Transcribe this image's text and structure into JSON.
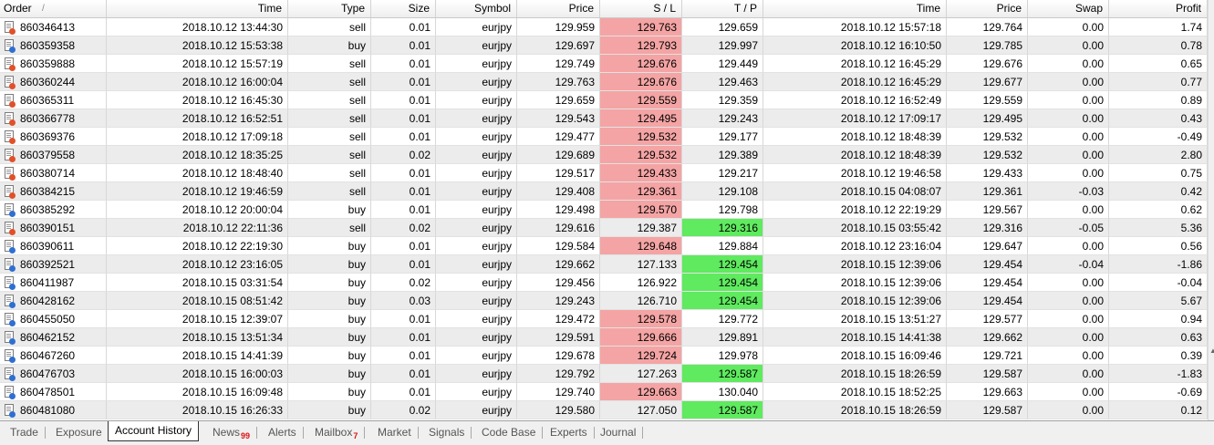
{
  "columns": [
    "Order",
    "Time",
    "Type",
    "Size",
    "Symbol",
    "Price",
    "S / L",
    "T / P",
    "Time",
    "Price",
    "Swap",
    "Profit"
  ],
  "sort_indicator": "/",
  "rows": [
    {
      "order": "860346413",
      "open_time": "2018.10.12 13:44:30",
      "type": "sell",
      "size": "0.01",
      "symbol": "eurjpy",
      "open_price": "129.959",
      "sl": "129.763",
      "tp": "129.659",
      "close_time": "2018.10.12 15:57:18",
      "close_price": "129.764",
      "swap": "0.00",
      "profit": "1.74",
      "sl_hit": true,
      "tp_hit": false
    },
    {
      "order": "860359358",
      "open_time": "2018.10.12 15:53:38",
      "type": "buy",
      "size": "0.01",
      "symbol": "eurjpy",
      "open_price": "129.697",
      "sl": "129.793",
      "tp": "129.997",
      "close_time": "2018.10.12 16:10:50",
      "close_price": "129.785",
      "swap": "0.00",
      "profit": "0.78",
      "sl_hit": true,
      "tp_hit": false
    },
    {
      "order": "860359888",
      "open_time": "2018.10.12 15:57:19",
      "type": "sell",
      "size": "0.01",
      "symbol": "eurjpy",
      "open_price": "129.749",
      "sl": "129.676",
      "tp": "129.449",
      "close_time": "2018.10.12 16:45:29",
      "close_price": "129.676",
      "swap": "0.00",
      "profit": "0.65",
      "sl_hit": true,
      "tp_hit": false
    },
    {
      "order": "860360244",
      "open_time": "2018.10.12 16:00:04",
      "type": "sell",
      "size": "0.01",
      "symbol": "eurjpy",
      "open_price": "129.763",
      "sl": "129.676",
      "tp": "129.463",
      "close_time": "2018.10.12 16:45:29",
      "close_price": "129.677",
      "swap": "0.00",
      "profit": "0.77",
      "sl_hit": true,
      "tp_hit": false
    },
    {
      "order": "860365311",
      "open_time": "2018.10.12 16:45:30",
      "type": "sell",
      "size": "0.01",
      "symbol": "eurjpy",
      "open_price": "129.659",
      "sl": "129.559",
      "tp": "129.359",
      "close_time": "2018.10.12 16:52:49",
      "close_price": "129.559",
      "swap": "0.00",
      "profit": "0.89",
      "sl_hit": true,
      "tp_hit": false
    },
    {
      "order": "860366778",
      "open_time": "2018.10.12 16:52:51",
      "type": "sell",
      "size": "0.01",
      "symbol": "eurjpy",
      "open_price": "129.543",
      "sl": "129.495",
      "tp": "129.243",
      "close_time": "2018.10.12 17:09:17",
      "close_price": "129.495",
      "swap": "0.00",
      "profit": "0.43",
      "sl_hit": true,
      "tp_hit": false
    },
    {
      "order": "860369376",
      "open_time": "2018.10.12 17:09:18",
      "type": "sell",
      "size": "0.01",
      "symbol": "eurjpy",
      "open_price": "129.477",
      "sl": "129.532",
      "tp": "129.177",
      "close_time": "2018.10.12 18:48:39",
      "close_price": "129.532",
      "swap": "0.00",
      "profit": "-0.49",
      "sl_hit": true,
      "tp_hit": false
    },
    {
      "order": "860379558",
      "open_time": "2018.10.12 18:35:25",
      "type": "sell",
      "size": "0.02",
      "symbol": "eurjpy",
      "open_price": "129.689",
      "sl": "129.532",
      "tp": "129.389",
      "close_time": "2018.10.12 18:48:39",
      "close_price": "129.532",
      "swap": "0.00",
      "profit": "2.80",
      "sl_hit": true,
      "tp_hit": false
    },
    {
      "order": "860380714",
      "open_time": "2018.10.12 18:48:40",
      "type": "sell",
      "size": "0.01",
      "symbol": "eurjpy",
      "open_price": "129.517",
      "sl": "129.433",
      "tp": "129.217",
      "close_time": "2018.10.12 19:46:58",
      "close_price": "129.433",
      "swap": "0.00",
      "profit": "0.75",
      "sl_hit": true,
      "tp_hit": false
    },
    {
      "order": "860384215",
      "open_time": "2018.10.12 19:46:59",
      "type": "sell",
      "size": "0.01",
      "symbol": "eurjpy",
      "open_price": "129.408",
      "sl": "129.361",
      "tp": "129.108",
      "close_time": "2018.10.15 04:08:07",
      "close_price": "129.361",
      "swap": "-0.03",
      "profit": "0.42",
      "sl_hit": true,
      "tp_hit": false
    },
    {
      "order": "860385292",
      "open_time": "2018.10.12 20:00:04",
      "type": "buy",
      "size": "0.01",
      "symbol": "eurjpy",
      "open_price": "129.498",
      "sl": "129.570",
      "tp": "129.798",
      "close_time": "2018.10.12 22:19:29",
      "close_price": "129.567",
      "swap": "0.00",
      "profit": "0.62",
      "sl_hit": true,
      "tp_hit": false
    },
    {
      "order": "860390151",
      "open_time": "2018.10.12 22:11:36",
      "type": "sell",
      "size": "0.02",
      "symbol": "eurjpy",
      "open_price": "129.616",
      "sl": "129.387",
      "tp": "129.316",
      "close_time": "2018.10.15 03:55:42",
      "close_price": "129.316",
      "swap": "-0.05",
      "profit": "5.36",
      "sl_hit": false,
      "tp_hit": true
    },
    {
      "order": "860390611",
      "open_time": "2018.10.12 22:19:30",
      "type": "buy",
      "size": "0.01",
      "symbol": "eurjpy",
      "open_price": "129.584",
      "sl": "129.648",
      "tp": "129.884",
      "close_time": "2018.10.12 23:16:04",
      "close_price": "129.647",
      "swap": "0.00",
      "profit": "0.56",
      "sl_hit": true,
      "tp_hit": false
    },
    {
      "order": "860392521",
      "open_time": "2018.10.12 23:16:05",
      "type": "buy",
      "size": "0.01",
      "symbol": "eurjpy",
      "open_price": "129.662",
      "sl": "127.133",
      "tp": "129.454",
      "close_time": "2018.10.15 12:39:06",
      "close_price": "129.454",
      "swap": "-0.04",
      "profit": "-1.86",
      "sl_hit": false,
      "tp_hit": true
    },
    {
      "order": "860411987",
      "open_time": "2018.10.15 03:31:54",
      "type": "buy",
      "size": "0.02",
      "symbol": "eurjpy",
      "open_price": "129.456",
      "sl": "126.922",
      "tp": "129.454",
      "close_time": "2018.10.15 12:39:06",
      "close_price": "129.454",
      "swap": "0.00",
      "profit": "-0.04",
      "sl_hit": false,
      "tp_hit": true
    },
    {
      "order": "860428162",
      "open_time": "2018.10.15 08:51:42",
      "type": "buy",
      "size": "0.03",
      "symbol": "eurjpy",
      "open_price": "129.243",
      "sl": "126.710",
      "tp": "129.454",
      "close_time": "2018.10.15 12:39:06",
      "close_price": "129.454",
      "swap": "0.00",
      "profit": "5.67",
      "sl_hit": false,
      "tp_hit": true
    },
    {
      "order": "860455050",
      "open_time": "2018.10.15 12:39:07",
      "type": "buy",
      "size": "0.01",
      "symbol": "eurjpy",
      "open_price": "129.472",
      "sl": "129.578",
      "tp": "129.772",
      "close_time": "2018.10.15 13:51:27",
      "close_price": "129.577",
      "swap": "0.00",
      "profit": "0.94",
      "sl_hit": true,
      "tp_hit": false
    },
    {
      "order": "860462152",
      "open_time": "2018.10.15 13:51:34",
      "type": "buy",
      "size": "0.01",
      "symbol": "eurjpy",
      "open_price": "129.591",
      "sl": "129.666",
      "tp": "129.891",
      "close_time": "2018.10.15 14:41:38",
      "close_price": "129.662",
      "swap": "0.00",
      "profit": "0.63",
      "sl_hit": true,
      "tp_hit": false
    },
    {
      "order": "860467260",
      "open_time": "2018.10.15 14:41:39",
      "type": "buy",
      "size": "0.01",
      "symbol": "eurjpy",
      "open_price": "129.678",
      "sl": "129.724",
      "tp": "129.978",
      "close_time": "2018.10.15 16:09:46",
      "close_price": "129.721",
      "swap": "0.00",
      "profit": "0.39",
      "sl_hit": true,
      "tp_hit": false
    },
    {
      "order": "860476703",
      "open_time": "2018.10.15 16:00:03",
      "type": "buy",
      "size": "0.01",
      "symbol": "eurjpy",
      "open_price": "129.792",
      "sl": "127.263",
      "tp": "129.587",
      "close_time": "2018.10.15 18:26:59",
      "close_price": "129.587",
      "swap": "0.00",
      "profit": "-1.83",
      "sl_hit": false,
      "tp_hit": true
    },
    {
      "order": "860478501",
      "open_time": "2018.10.15 16:09:48",
      "type": "buy",
      "size": "0.01",
      "symbol": "eurjpy",
      "open_price": "129.740",
      "sl": "129.663",
      "tp": "130.040",
      "close_time": "2018.10.15 18:52:25",
      "close_price": "129.663",
      "swap": "0.00",
      "profit": "-0.69",
      "sl_hit": true,
      "tp_hit": false
    },
    {
      "order": "860481080",
      "open_time": "2018.10.15 16:26:33",
      "type": "buy",
      "size": "0.02",
      "symbol": "eurjpy",
      "open_price": "129.580",
      "sl": "127.050",
      "tp": "129.587",
      "close_time": "2018.10.15 18:26:59",
      "close_price": "129.587",
      "swap": "0.00",
      "profit": "0.12",
      "sl_hit": false,
      "tp_hit": true
    }
  ],
  "tabs": [
    {
      "label": "Trade",
      "badge": ""
    },
    {
      "label": "Exposure",
      "badge": ""
    },
    {
      "label": "Account History",
      "badge": "",
      "active": true
    },
    {
      "label": "News",
      "badge": "99"
    },
    {
      "label": "Alerts",
      "badge": ""
    },
    {
      "label": "Mailbox",
      "badge": "7"
    },
    {
      "label": "Market",
      "badge": ""
    },
    {
      "label": "Signals",
      "badge": ""
    },
    {
      "label": "Code Base",
      "badge": ""
    },
    {
      "label": "Experts",
      "badge": ""
    },
    {
      "label": "Journal",
      "badge": ""
    }
  ],
  "colors": {
    "sl_highlight": "#f4a4a4",
    "tp_highlight": "#5fea5f",
    "sell_icon": "#e0512a",
    "buy_icon": "#2f6fd1"
  },
  "icons": {
    "row": "order-document-icon"
  }
}
